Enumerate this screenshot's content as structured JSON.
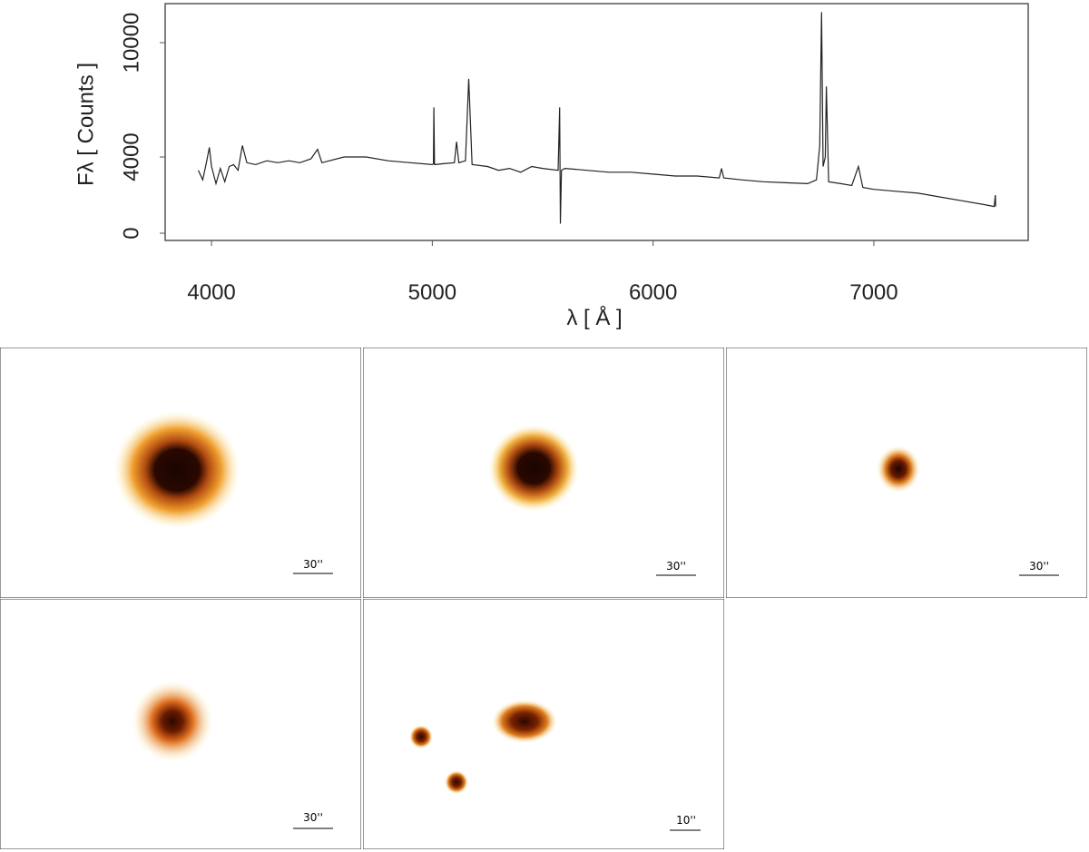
{
  "chart_data": {
    "type": "line",
    "xlabel": "λ [ Å ]",
    "ylabel": "Fλ [ Counts ]",
    "x": [
      3940,
      3960,
      3975,
      3990,
      4000,
      4020,
      4040,
      4060,
      4080,
      4100,
      4120,
      4140,
      4160,
      4200,
      4250,
      4300,
      4350,
      4400,
      4450,
      4480,
      4500,
      4600,
      4700,
      4800,
      4900,
      5000,
      5005,
      5007,
      5010,
      5050,
      5100,
      5110,
      5120,
      5150,
      5165,
      5180,
      5250,
      5300,
      5350,
      5400,
      5450,
      5500,
      5570,
      5577,
      5580,
      5585,
      5600,
      5700,
      5800,
      5900,
      6000,
      6100,
      6200,
      6300,
      6310,
      6320,
      6400,
      6500,
      6600,
      6700,
      6740,
      6755,
      6763,
      6770,
      6780,
      6785,
      6795,
      6850,
      6900,
      6930,
      6950,
      7000,
      7100,
      7200,
      7300,
      7400,
      7500,
      7545,
      7550,
      7552
    ],
    "series": [
      {
        "color": "#222222",
        "values": [
          3300,
          2800,
          3600,
          4500,
          3500,
          2600,
          3400,
          2700,
          3500,
          3600,
          3300,
          4600,
          3700,
          3600,
          3800,
          3700,
          3800,
          3700,
          3900,
          4400,
          3700,
          4000,
          4000,
          3800,
          3700,
          3600,
          3650,
          6600,
          3600,
          3650,
          3700,
          4800,
          3700,
          3800,
          8100,
          3600,
          3500,
          3300,
          3400,
          3200,
          3500,
          3400,
          3300,
          6600,
          500,
          3300,
          3400,
          3300,
          3200,
          3200,
          3100,
          3000,
          3000,
          2900,
          3400,
          2900,
          2800,
          2700,
          2650,
          2600,
          2800,
          4600,
          11600,
          3500,
          4000,
          7700,
          2700,
          2600,
          2500,
          3500,
          2400,
          2300,
          2200,
          2100,
          1900,
          1700,
          1500,
          1400,
          2000,
          1400
        ]
      }
    ],
    "xlim": [
      3790,
      7699
    ],
    "xticks": [
      4000,
      5000,
      6000,
      7000
    ],
    "ylim": [
      -380,
      12048
    ],
    "yticks": [
      0,
      4000,
      10000
    ],
    "grid": false
  },
  "panels": [
    {
      "scale_label": "30''"
    },
    {
      "scale_label": "30''"
    },
    {
      "scale_label": "30''"
    },
    {
      "scale_label": "30''"
    },
    {
      "scale_label": "10''"
    }
  ]
}
